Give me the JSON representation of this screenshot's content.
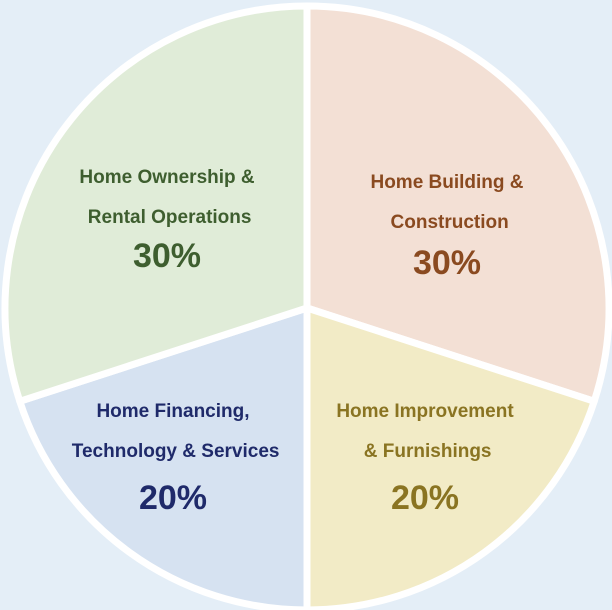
{
  "chart_data": {
    "type": "pie",
    "categories": [
      "Home Building &\nConstruction",
      "Home Improvement\n& Furnishings",
      "Home Financing,\nTechnology & Services",
      "Home Ownership &\nRental Operations"
    ],
    "values": [
      30,
      20,
      20,
      30
    ],
    "value_labels": [
      "30%",
      "20%",
      "20%",
      "30%"
    ],
    "colors": [
      "#f3e0d5",
      "#f2ebc6",
      "#d6e2f1",
      "#e0ecd8"
    ],
    "label_colors": [
      "#8a4a20",
      "#8a7422",
      "#1f2a6a",
      "#3e5e2f"
    ]
  }
}
